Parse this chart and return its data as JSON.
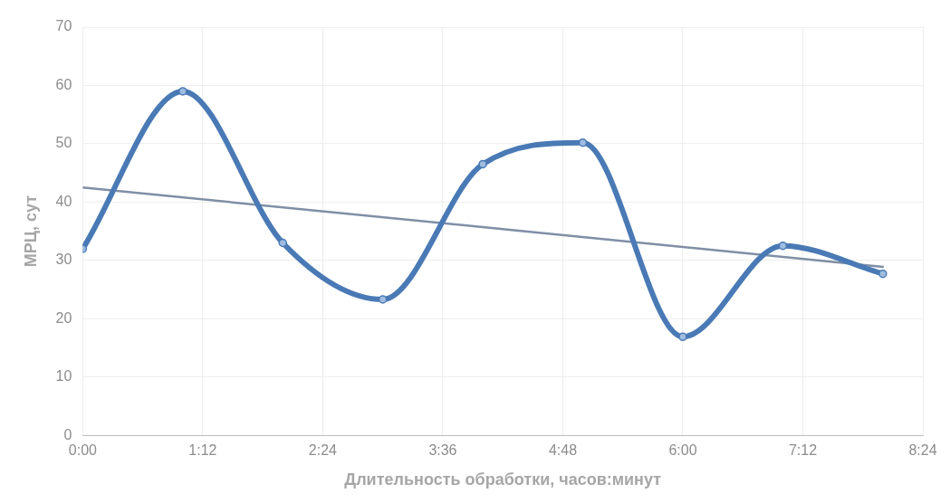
{
  "chart_data": {
    "type": "line",
    "xlabel": "Длительность обработки, часов:минут",
    "ylabel": "МРЦ, сут",
    "series": [
      {
        "color": "#4a7ab5",
        "x": [
          0,
          1,
          2,
          3,
          4,
          5,
          6,
          7,
          8
        ],
        "values": [
          32,
          59,
          33,
          23.3,
          46.5,
          50.2,
          16.9,
          32.5,
          27.7
        ],
        "marker": "circle"
      },
      {
        "type": "line",
        "color": "#7f8fa6",
        "x": [
          0,
          8
        ],
        "values": [
          42.5,
          28.9
        ],
        "marker": "none"
      }
    ],
    "xlim": [
      0,
      8.4
    ],
    "xticks": [
      {
        "value": 0,
        "label": "0:00"
      },
      {
        "value": 1.2,
        "label": "1:12"
      },
      {
        "value": 2.4,
        "label": "2:24"
      },
      {
        "value": 3.6,
        "label": "3:36"
      },
      {
        "value": 4.8,
        "label": "4:48"
      },
      {
        "value": 6,
        "label": "6:00"
      },
      {
        "value": 7.2,
        "label": "7:12"
      },
      {
        "value": 8.4,
        "label": "8:24"
      }
    ],
    "ylim": [
      0,
      70
    ],
    "yticks": [
      0,
      10,
      20,
      30,
      40,
      50,
      60,
      70
    ],
    "grid": true,
    "legend": false
  }
}
